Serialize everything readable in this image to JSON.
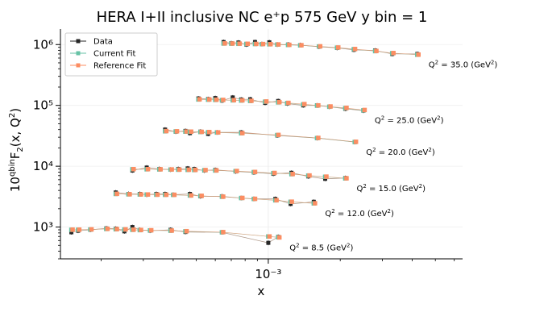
{
  "chart_data": {
    "type": "scatter",
    "title": "HERA I+II inclusive NC e⁺p 575 GeV y bin = 1",
    "xlabel": "x",
    "ylabel": "10^{qbin} F₂(x, Q²)",
    "x_scale": "log",
    "y_scale": "log",
    "xlim": [
      0.000135,
      0.0065
    ],
    "ylim": [
      300,
      1800000
    ],
    "xticks": [
      {
        "value": 0.001,
        "label": "10⁻³"
      }
    ],
    "yticks": [
      {
        "value": 1000,
        "label": "10³"
      },
      {
        "value": 10000,
        "label": "10⁴"
      },
      {
        "value": 100000,
        "label": "10⁵"
      },
      {
        "value": 1000000,
        "label": "10⁶"
      }
    ],
    "legend": {
      "position": "top-left",
      "entries": [
        {
          "label": "Data",
          "color": "#262626"
        },
        {
          "label": "Current Fit",
          "color": "#66c2a5"
        },
        {
          "label": "Reference Fit",
          "color": "#fc8d62"
        }
      ]
    },
    "colors": {
      "data": "#262626",
      "current_fit": "#66c2a5",
      "reference_fit": "#fc8d62",
      "line": "#b09a8a"
    },
    "groups": [
      {
        "annotation": "Q² = 8.5 (GeV²)",
        "x": [
          0.00015,
          0.00016,
          0.00018,
          0.00021,
          0.00023,
          0.00025,
          0.00027,
          0.00029,
          0.00032,
          0.00039,
          0.00045,
          0.00064,
          0.001,
          0.0011
        ],
        "data": [
          820,
          870,
          900,
          950,
          940,
          850,
          1000,
          900,
          870,
          900,
          830,
          820,
          550,
          690
        ],
        "current": [
          900,
          900,
          910,
          930,
          920,
          910,
          900,
          890,
          880,
          870,
          850,
          820,
          700,
          680
        ],
        "reference": [
          905,
          905,
          915,
          935,
          925,
          915,
          905,
          895,
          885,
          875,
          855,
          825,
          700,
          675
        ]
      },
      {
        "annotation": "Q² = 12.0 (GeV²)",
        "x": [
          0.00023,
          0.00026,
          0.00029,
          0.00031,
          0.00034,
          0.00037,
          0.0004,
          0.00047,
          0.00052,
          0.00064,
          0.00077,
          0.00087,
          0.00107,
          0.00124,
          0.00155
        ],
        "data": [
          3700,
          3500,
          3500,
          3400,
          3500,
          3500,
          3400,
          3500,
          3200,
          3200,
          3000,
          2900,
          2900,
          2400,
          2600
        ],
        "current": [
          3500,
          3450,
          3430,
          3420,
          3400,
          3390,
          3380,
          3300,
          3250,
          3150,
          3000,
          2900,
          2750,
          2600,
          2450
        ],
        "reference": [
          3520,
          3460,
          3440,
          3430,
          3410,
          3400,
          3390,
          3310,
          3260,
          3160,
          3010,
          2910,
          2760,
          2610,
          2460
        ]
      },
      {
        "annotation": "Q² = 15.0 (GeV²)",
        "x": [
          0.00027,
          0.00031,
          0.00035,
          0.00039,
          0.00042,
          0.00046,
          0.00049,
          0.00054,
          0.0006,
          0.00073,
          0.00087,
          0.00105,
          0.00125,
          0.00147,
          0.00173,
          0.0021
        ],
        "data": [
          8500,
          9500,
          9000,
          8800,
          9000,
          9200,
          9000,
          8500,
          8700,
          8200,
          7900,
          7500,
          7800,
          6800,
          6200,
          6400
        ],
        "current": [
          8900,
          8900,
          8850,
          8800,
          8760,
          8700,
          8650,
          8600,
          8500,
          8300,
          8000,
          7700,
          7400,
          7000,
          6700,
          6300
        ],
        "reference": [
          8950,
          8950,
          8900,
          8850,
          8800,
          8750,
          8700,
          8640,
          8540,
          8340,
          8040,
          7740,
          7440,
          7040,
          6740,
          6330
        ]
      },
      {
        "annotation": "Q² = 20.0 (GeV²)",
        "x": [
          0.00037,
          0.00041,
          0.00045,
          0.00047,
          0.00052,
          0.00056,
          0.00061,
          0.00077,
          0.00109,
          0.0016,
          0.0023
        ],
        "data": [
          40000,
          37000,
          38000,
          35000,
          37000,
          34000,
          36000,
          36000,
          32000,
          29000,
          25000
        ],
        "current": [
          37500,
          37300,
          37000,
          36800,
          36500,
          36200,
          35800,
          34800,
          32500,
          29000,
          25000
        ],
        "reference": [
          37800,
          37500,
          37200,
          37000,
          36700,
          36400,
          36000,
          35000,
          32700,
          29200,
          25200
        ]
      },
      {
        "annotation": "Q² = 25.0 (GeV²)",
        "x": [
          0.00051,
          0.00056,
          0.0006,
          0.00064,
          0.00071,
          0.00077,
          0.00084,
          0.00097,
          0.0011,
          0.0012,
          0.0014,
          0.0016,
          0.0018,
          0.0021,
          0.0025
        ],
        "data": [
          130000,
          127000,
          132000,
          120000,
          135000,
          125000,
          126000,
          110000,
          118000,
          107000,
          100000,
          100000,
          95000,
          88000,
          82000
        ],
        "current": [
          125000,
          124000,
          123000,
          122000,
          121000,
          120000,
          118000,
          115000,
          112000,
          109000,
          104000,
          99000,
          95000,
          90000,
          83000
        ],
        "reference": [
          126000,
          125000,
          124000,
          123000,
          122000,
          121000,
          119000,
          116000,
          113000,
          110000,
          105000,
          100000,
          96000,
          91000,
          84000
        ]
      },
      {
        "annotation": "Q² = 35.0 (GeV²)",
        "x": [
          0.00065,
          0.0007,
          0.00075,
          0.00081,
          0.00088,
          0.00094,
          0.00101,
          0.00109,
          0.00121,
          0.00136,
          0.00163,
          0.00194,
          0.00228,
          0.0028,
          0.0033,
          0.0042
        ],
        "data": [
          1100000,
          1050000,
          1080000,
          1000000,
          1100000,
          1020000,
          1090000,
          1000000,
          1000000,
          980000,
          920000,
          880000,
          820000,
          800000,
          700000,
          700000
        ],
        "current": [
          1040000,
          1035000,
          1030000,
          1025000,
          1020000,
          1015000,
          1010000,
          1000000,
          985000,
          970000,
          930000,
          890000,
          840000,
          780000,
          720000,
          680000
        ],
        "reference": [
          1045000,
          1040000,
          1035000,
          1030000,
          1025000,
          1020000,
          1015000,
          1005000,
          990000,
          975000,
          935000,
          895000,
          845000,
          785000,
          725000,
          683000
        ]
      }
    ]
  }
}
